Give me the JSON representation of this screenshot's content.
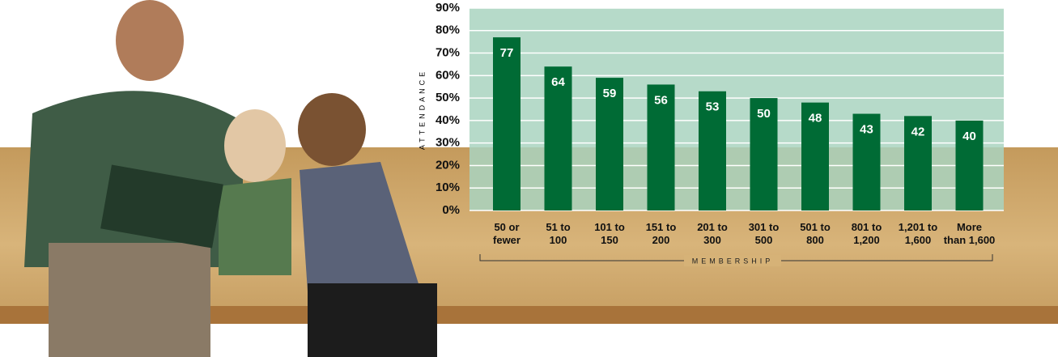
{
  "chart_data": {
    "type": "bar",
    "y_label": "ATTENDANCE",
    "x_label": "MEMBERSHIP",
    "categories": [
      "50 or\nfewer",
      "51 to\n100",
      "101 to\n150",
      "151 to\n200",
      "201 to\n300",
      "301 to\n500",
      "501 to\n800",
      "801 to\n1,200",
      "1,201 to\n1,600",
      "More\nthan 1,600"
    ],
    "values": [
      77,
      64,
      59,
      56,
      53,
      50,
      48,
      43,
      42,
      40
    ],
    "color": "#006b35",
    "ylim": [
      0,
      90
    ],
    "yticks": [
      {
        "value": 0,
        "label": "0%"
      },
      {
        "value": 10,
        "label": "10%"
      },
      {
        "value": 20,
        "label": "20%"
      },
      {
        "value": 30,
        "label": "30%"
      },
      {
        "value": 40,
        "label": "40%"
      },
      {
        "value": 50,
        "label": "50%"
      },
      {
        "value": 60,
        "label": "60%"
      },
      {
        "value": 70,
        "label": "70%"
      },
      {
        "value": 80,
        "label": "80%"
      },
      {
        "value": 90,
        "label": "90%"
      }
    ],
    "grid": true
  }
}
